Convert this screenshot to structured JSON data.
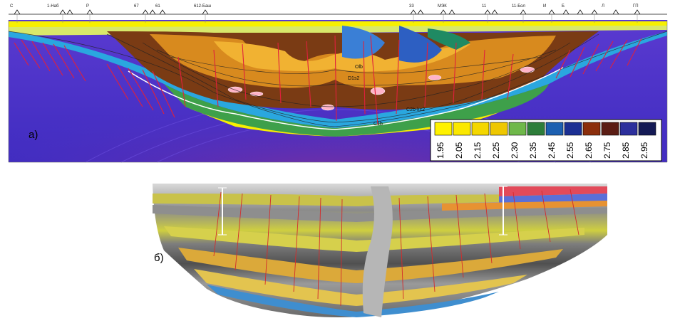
{
  "panels": {
    "a": {
      "label": "а)"
    },
    "b": {
      "label": "б)"
    }
  },
  "top_wells": [
    "С",
    "1-Наб",
    "Р",
    "67",
    "61",
    "612-Баш",
    "33",
    "МЭК",
    "11",
    "11-Бол",
    "И",
    "Б",
    "Л",
    "ГП"
  ],
  "legend": {
    "values": [
      "1.95",
      "2.05",
      "2.15",
      "2.25",
      "2.30",
      "2.35",
      "2.45",
      "2.55",
      "2.65",
      "2.75",
      "2.85",
      "2.95"
    ],
    "swatches": [
      "#fff200",
      "#fbe800",
      "#f4d700",
      "#eec700",
      "#6fb84a",
      "#2d7d3a",
      "#1c5fb0",
      "#1b2f93",
      "#8b2e0c",
      "#5b1d14",
      "#2c2f9c",
      "#141a55"
    ]
  },
  "section_a_labels": [
    "Olb",
    "D1s2",
    "C1b",
    "C2b-kc2"
  ],
  "colors": {
    "background_purple": "#4b32c8",
    "deep_purple": "#2a1f9c",
    "yellow": "#f7f000",
    "brown": "#7a3b14",
    "orange": "#d88a1e",
    "green": "#3ea04a",
    "cyan": "#2aa7df",
    "fault_red": "#e0203c"
  }
}
